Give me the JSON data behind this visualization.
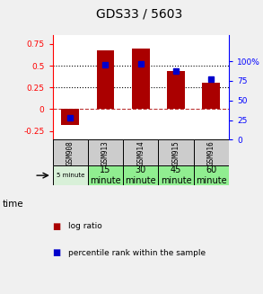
{
  "title": "GDS33 / 5603",
  "categories": [
    "GSM908",
    "GSM913",
    "GSM914",
    "GSM915",
    "GSM916"
  ],
  "time_labels": [
    "5 minute",
    "15\nminute",
    "30\nminute",
    "45\nminute",
    "60\nminute"
  ],
  "time_colors": [
    "#d8f0d8",
    "#90EE90",
    "#90EE90",
    "#90EE90",
    "#90EE90"
  ],
  "log_ratio": [
    -0.18,
    0.68,
    0.7,
    0.44,
    0.3
  ],
  "percentile_rank_pct": [
    28,
    96,
    97,
    88,
    77
  ],
  "bar_color": "#aa0000",
  "dot_color": "#0000cc",
  "ylim_left": [
    -0.35,
    0.85
  ],
  "ylim_right": [
    0,
    133.33
  ],
  "yticks_left": [
    -0.25,
    0,
    0.25,
    0.5,
    0.75
  ],
  "yticks_right": [
    0,
    25,
    50,
    75,
    100
  ],
  "ytick_labels_left": [
    "-0.25",
    "0",
    "0.25",
    "0.5",
    "0.75"
  ],
  "ytick_labels_right": [
    "0",
    "25",
    "50",
    "75",
    "100%"
  ],
  "hline_y": [
    0.25,
    0.5
  ],
  "zero_line_y": 0,
  "bg_color": "#f0f0f0",
  "plot_bg": "#ffffff",
  "gsm_bg": "#cccccc",
  "legend_log_label": "log ratio",
  "legend_pct_label": "percentile rank within the sample",
  "bar_width": 0.5
}
